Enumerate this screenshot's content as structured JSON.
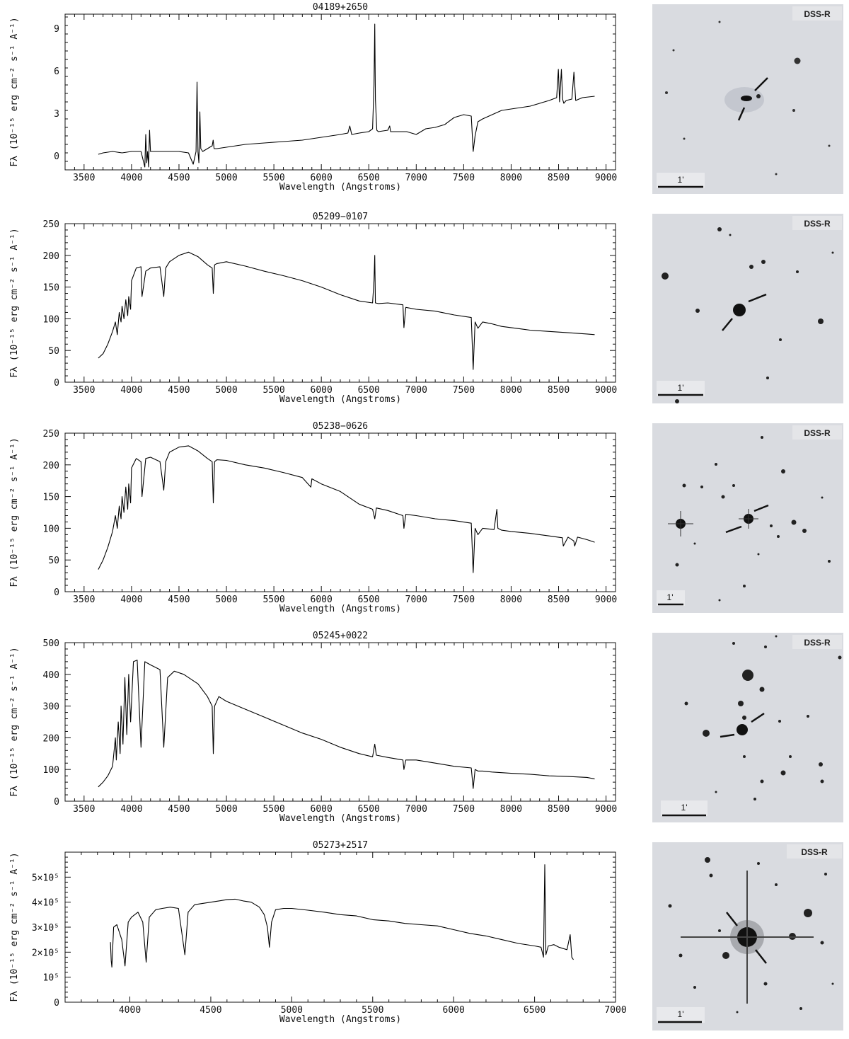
{
  "figure": {
    "thumbnail_band": "DSS-R",
    "thumbnail_scale": "1'"
  },
  "chart_data": [
    {
      "type": "line",
      "title": "04189+2650",
      "xlabel": "Wavelength (Angstroms)",
      "ylabel": "Fλ (10⁻¹⁵ erg cm⁻² s⁻¹ A⁻¹)",
      "xlim": [
        3300,
        9100
      ],
      "ylim": [
        -1,
        10
      ],
      "xticks": [
        3500,
        4000,
        4500,
        5000,
        5500,
        6000,
        6500,
        7000,
        7500,
        8000,
        8500,
        9000
      ],
      "yticks": [
        0,
        3,
        6,
        9
      ],
      "ytick_labels": [
        "0",
        "3",
        "6",
        "9"
      ],
      "series": [
        {
          "x": [
            3650,
            3700,
            3800,
            3900,
            4000,
            4100,
            4140,
            4150,
            4160,
            4170,
            4180,
            4190,
            4200,
            4300,
            4400,
            4500,
            4600,
            4650,
            4680,
            4690,
            4700,
            4710,
            4720,
            4730,
            4750,
            4800,
            4850,
            4860,
            4870,
            4900,
            5000,
            5200,
            5400,
            5600,
            5800,
            6000,
            6200,
            6280,
            6300,
            6320,
            6400,
            6500,
            6540,
            6555,
            6563,
            6570,
            6585,
            6600,
            6700,
            6720,
            6730,
            6760,
            6900,
            7000,
            7100,
            7200,
            7300,
            7400,
            7500,
            7580,
            7600,
            7620,
            7650,
            7700,
            7800,
            7900,
            8000,
            8200,
            8400,
            8480,
            8498,
            8510,
            8530,
            8542,
            8555,
            8580,
            8640,
            8662,
            8680,
            8750,
            8880
          ],
          "y": [
            0.1,
            0.2,
            0.3,
            0.2,
            0.3,
            0.3,
            -0.8,
            1.5,
            -0.5,
            0.3,
            -0.8,
            1.8,
            0.3,
            0.3,
            0.3,
            0.3,
            0.2,
            -0.6,
            0.3,
            5.2,
            0.3,
            -0.5,
            3.1,
            0.5,
            0.3,
            0.5,
            0.7,
            1.1,
            0.5,
            0.5,
            0.6,
            0.8,
            0.9,
            1.0,
            1.1,
            1.3,
            1.5,
            1.6,
            2.1,
            1.5,
            1.6,
            1.7,
            1.9,
            5.0,
            9.3,
            4.0,
            1.8,
            1.7,
            1.8,
            2.1,
            1.7,
            1.7,
            1.7,
            1.5,
            1.9,
            2.0,
            2.2,
            2.7,
            2.9,
            2.8,
            0.3,
            1.4,
            2.4,
            2.6,
            2.9,
            3.2,
            3.3,
            3.5,
            3.9,
            4.1,
            6.1,
            3.8,
            6.1,
            4.0,
            3.7,
            3.9,
            4.0,
            5.9,
            3.9,
            4.1,
            4.2
          ]
        }
      ]
    },
    {
      "type": "line",
      "title": "05209−0107",
      "xlabel": "Wavelength (Angstroms)",
      "ylabel": "Fλ (10⁻¹⁵ erg cm⁻² s⁻¹ A⁻¹)",
      "xlim": [
        3300,
        9100
      ],
      "ylim": [
        0,
        250
      ],
      "xticks": [
        3500,
        4000,
        4500,
        5000,
        5500,
        6000,
        6500,
        7000,
        7500,
        8000,
        8500,
        9000
      ],
      "yticks": [
        0,
        50,
        100,
        150,
        200,
        250
      ],
      "ytick_labels": [
        "0",
        "50",
        "100",
        "150",
        "200",
        "250"
      ],
      "series": [
        {
          "x": [
            3650,
            3700,
            3750,
            3800,
            3830,
            3850,
            3870,
            3890,
            3900,
            3920,
            3940,
            3960,
            3970,
            3990,
            4000,
            4050,
            4100,
            4110,
            4150,
            4200,
            4300,
            4340,
            4360,
            4400,
            4500,
            4600,
            4700,
            4800,
            4850,
            4862,
            4875,
            4900,
            5000,
            5200,
            5400,
            5600,
            5800,
            6000,
            6200,
            6400,
            6540,
            6555,
            6563,
            6570,
            6600,
            6700,
            6860,
            6870,
            6890,
            7000,
            7200,
            7400,
            7580,
            7600,
            7620,
            7650,
            7700,
            7800,
            7900,
            8000,
            8100,
            8200,
            8400,
            8600,
            8800,
            8880
          ],
          "y": [
            38,
            45,
            60,
            80,
            95,
            75,
            110,
            95,
            120,
            100,
            130,
            105,
            135,
            115,
            160,
            180,
            182,
            135,
            175,
            180,
            182,
            135,
            180,
            190,
            200,
            205,
            198,
            185,
            180,
            140,
            185,
            187,
            190,
            183,
            175,
            168,
            160,
            150,
            138,
            128,
            125,
            160,
            200,
            125,
            124,
            125,
            122,
            86,
            118,
            115,
            112,
            106,
            102,
            20,
            95,
            85,
            95,
            92,
            88,
            86,
            84,
            82,
            80,
            78,
            76,
            75
          ]
        }
      ]
    },
    {
      "type": "line",
      "title": "05238−0626",
      "xlabel": "Wavelength (Angstroms)",
      "ylabel": "Fλ (10⁻¹⁵ erg cm⁻² s⁻¹ A⁻¹)",
      "xlim": [
        3300,
        9100
      ],
      "ylim": [
        0,
        250
      ],
      "xticks": [
        3500,
        4000,
        4500,
        5000,
        5500,
        6000,
        6500,
        7000,
        7500,
        8000,
        8500,
        9000
      ],
      "yticks": [
        0,
        50,
        100,
        150,
        200,
        250
      ],
      "ytick_labels": [
        "0",
        "50",
        "100",
        "150",
        "200",
        "250"
      ],
      "series": [
        {
          "x": [
            3650,
            3700,
            3750,
            3800,
            3830,
            3850,
            3870,
            3890,
            3900,
            3920,
            3940,
            3960,
            3970,
            3990,
            4000,
            4050,
            4100,
            4110,
            4150,
            4200,
            4300,
            4340,
            4360,
            4400,
            4500,
            4600,
            4700,
            4800,
            4850,
            4862,
            4875,
            4900,
            5000,
            5200,
            5400,
            5600,
            5800,
            5890,
            5900,
            6000,
            6200,
            6400,
            6540,
            6563,
            6580,
            6700,
            6860,
            6870,
            6890,
            7000,
            7200,
            7400,
            7580,
            7600,
            7620,
            7650,
            7700,
            7820,
            7850,
            7860,
            7900,
            8000,
            8200,
            8400,
            8540,
            8550,
            8600,
            8660,
            8670,
            8700,
            8800,
            8880
          ],
          "y": [
            35,
            50,
            70,
            95,
            120,
            100,
            135,
            115,
            150,
            125,
            165,
            130,
            170,
            140,
            195,
            210,
            205,
            150,
            210,
            212,
            205,
            160,
            205,
            220,
            228,
            230,
            222,
            210,
            205,
            140,
            205,
            208,
            207,
            200,
            195,
            188,
            180,
            165,
            178,
            170,
            158,
            138,
            130,
            115,
            132,
            128,
            120,
            100,
            122,
            120,
            115,
            112,
            108,
            30,
            100,
            90,
            100,
            98,
            130,
            100,
            97,
            95,
            92,
            88,
            85,
            72,
            86,
            80,
            72,
            86,
            82,
            78
          ]
        }
      ]
    },
    {
      "type": "line",
      "title": "05245+0022",
      "xlabel": "Wavelength (Angstroms)",
      "ylabel": "Fλ (10⁻¹⁵ erg cm⁻² s⁻¹ A⁻¹)",
      "xlim": [
        3300,
        9100
      ],
      "ylim": [
        0,
        500
      ],
      "xticks": [
        3500,
        4000,
        4500,
        5000,
        5500,
        6000,
        6500,
        7000,
        7500,
        8000,
        8500,
        9000
      ],
      "yticks": [
        0,
        100,
        200,
        300,
        400,
        500
      ],
      "ytick_labels": [
        "0",
        "100",
        "200",
        "300",
        "400",
        "500"
      ],
      "series": [
        {
          "x": [
            3650,
            3700,
            3750,
            3800,
            3830,
            3840,
            3860,
            3880,
            3890,
            3910,
            3930,
            3950,
            3970,
            3990,
            4020,
            4060,
            4100,
            4140,
            4200,
            4300,
            4340,
            4380,
            4450,
            4550,
            4700,
            4800,
            4850,
            4862,
            4875,
            4920,
            5000,
            5200,
            5400,
            5600,
            5800,
            6000,
            6200,
            6400,
            6540,
            6563,
            6580,
            6700,
            6860,
            6870,
            6890,
            7000,
            7200,
            7400,
            7580,
            7600,
            7620,
            7650,
            7700,
            7800,
            8000,
            8200,
            8400,
            8600,
            8800,
            8880
          ],
          "y": [
            45,
            60,
            80,
            110,
            200,
            130,
            250,
            150,
            300,
            180,
            390,
            210,
            400,
            250,
            440,
            445,
            170,
            440,
            430,
            415,
            170,
            390,
            410,
            400,
            370,
            330,
            300,
            150,
            300,
            330,
            315,
            290,
            265,
            240,
            215,
            195,
            170,
            150,
            140,
            180,
            145,
            138,
            130,
            100,
            130,
            130,
            120,
            110,
            105,
            40,
            100,
            95,
            95,
            92,
            88,
            85,
            80,
            78,
            75,
            70
          ]
        }
      ]
    },
    {
      "type": "line",
      "title": "05273+2517",
      "xlabel": "Wavelength (Angstroms)",
      "ylabel": "Fλ (10⁻¹⁵ erg cm⁻² s⁻¹ A⁻¹)",
      "xlim": [
        3600,
        7000
      ],
      "ylim": [
        0,
        600000
      ],
      "xticks": [
        4000,
        4500,
        5000,
        5500,
        6000,
        6500,
        7000
      ],
      "yticks": [
        0,
        100000,
        200000,
        300000,
        400000,
        500000
      ],
      "ytick_labels": [
        "0",
        "10⁵",
        "2×10⁵",
        "3×10⁵",
        "4×10⁵",
        "5×10⁵"
      ],
      "series": [
        {
          "x": [
            3880,
            3885,
            3889,
            3900,
            3920,
            3950,
            3970,
            3990,
            4010,
            4050,
            4080,
            4101,
            4120,
            4160,
            4200,
            4250,
            4300,
            4340,
            4360,
            4400,
            4450,
            4500,
            4550,
            4600,
            4650,
            4700,
            4750,
            4800,
            4830,
            4850,
            4862,
            4875,
            4900,
            4950,
            5000,
            5100,
            5200,
            5300,
            5400,
            5500,
            5600,
            5700,
            5800,
            5900,
            6000,
            6100,
            6200,
            6300,
            6400,
            6500,
            6540,
            6555,
            6563,
            6570,
            6585,
            6620,
            6650,
            6700,
            6720,
            6730,
            6740
          ],
          "y": [
            240000,
            165000,
            140000,
            300000,
            310000,
            250000,
            145000,
            320000,
            340000,
            360000,
            320000,
            160000,
            340000,
            370000,
            375000,
            380000,
            375000,
            190000,
            360000,
            390000,
            395000,
            400000,
            405000,
            410000,
            412000,
            405000,
            400000,
            380000,
            350000,
            300000,
            220000,
            320000,
            370000,
            375000,
            375000,
            368000,
            360000,
            350000,
            345000,
            330000,
            325000,
            315000,
            310000,
            305000,
            290000,
            275000,
            265000,
            250000,
            235000,
            225000,
            220000,
            180000,
            550000,
            190000,
            225000,
            230000,
            220000,
            210000,
            270000,
            180000,
            170000
          ]
        }
      ]
    }
  ]
}
